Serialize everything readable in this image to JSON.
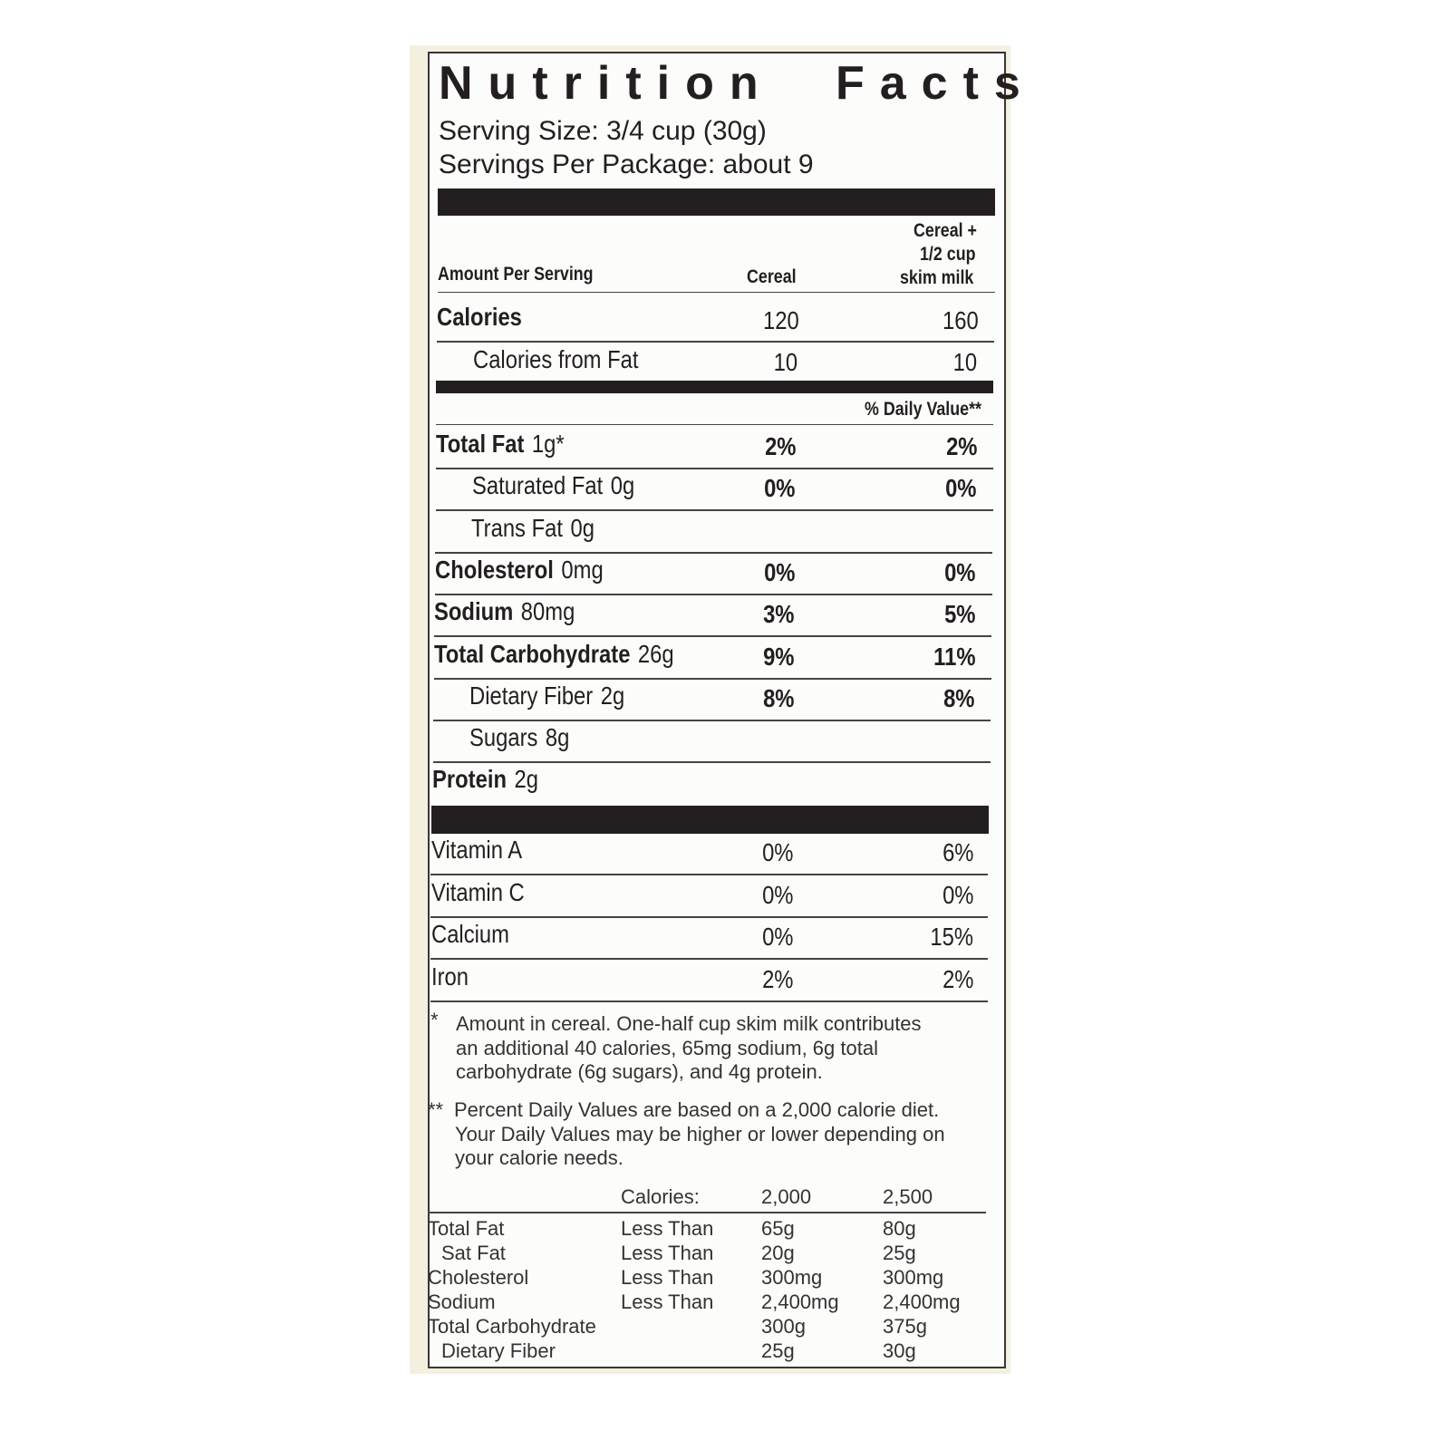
{
  "title_left": "Nutrition",
  "title_right": "Facts",
  "serving_size": "Serving Size: 3/4 cup (30g)",
  "servings_per_package": "Servings Per Package: about 9",
  "header": {
    "amount_per_serving": "Amount Per Serving",
    "col1": "Cereal",
    "col2_lines": [
      "Cereal +",
      "1/2 cup",
      "skim milk"
    ]
  },
  "calories": {
    "label": "Calories",
    "v1": "120",
    "v2": "160"
  },
  "calories_from_fat": {
    "label": "Calories from Fat",
    "v1": "10",
    "v2": "10"
  },
  "daily_value_header": "% Daily Value**",
  "nutrients": [
    {
      "label": "Total Fat",
      "amount": "1g*",
      "v1": "2%",
      "v2": "2%",
      "bold": true,
      "indent": false
    },
    {
      "label": "Saturated Fat",
      "amount": "0g",
      "v1": "0%",
      "v2": "0%",
      "bold": false,
      "indent": true
    },
    {
      "label": "Trans Fat",
      "amount": "0g",
      "v1": "",
      "v2": "",
      "bold": false,
      "indent": true
    },
    {
      "label": "Cholesterol",
      "amount": "0mg",
      "v1": "0%",
      "v2": "0%",
      "bold": true,
      "indent": false
    },
    {
      "label": "Sodium",
      "amount": "80mg",
      "v1": "3%",
      "v2": "5%",
      "bold": true,
      "indent": false
    },
    {
      "label": "Total Carbohydrate",
      "amount": "26g",
      "v1": "9%",
      "v2": "11%",
      "bold": true,
      "indent": false
    },
    {
      "label": "Dietary Fiber",
      "amount": "2g",
      "v1": "8%",
      "v2": "8%",
      "bold": false,
      "indent": true
    },
    {
      "label": "Sugars",
      "amount": "8g",
      "v1": "",
      "v2": "",
      "bold": false,
      "indent": true
    },
    {
      "label": "Protein",
      "amount": "2g",
      "v1": "",
      "v2": "",
      "bold": true,
      "indent": false
    }
  ],
  "vitamins": [
    {
      "label": "Vitamin A",
      "v1": "0%",
      "v2": "6%"
    },
    {
      "label": "Vitamin C",
      "v1": "0%",
      "v2": "0%"
    },
    {
      "label": "Calcium",
      "v1": "0%",
      "v2": "15%"
    },
    {
      "label": "Iron",
      "v1": "2%",
      "v2": "2%"
    }
  ],
  "footnote1": {
    "mark": "*",
    "lines": [
      "Amount in cereal. One-half cup skim milk contributes",
      "an additional 40 calories, 65mg sodium, 6g total",
      "carbohydrate (6g sugars), and 4g protein."
    ]
  },
  "footnote2": {
    "mark": "**",
    "lines": [
      "Percent Daily Values are based on a 2,000 calorie diet.",
      "Your Daily Values may be higher or lower depending on",
      "your calorie needs."
    ]
  },
  "dv_table": {
    "header": [
      "Calories:",
      "2,000",
      "2,500"
    ],
    "rows": [
      [
        "Total Fat",
        "Less Than",
        "65g",
        "80g"
      ],
      [
        "  Sat Fat",
        "Less Than",
        "20g",
        "25g"
      ],
      [
        "Cholesterol",
        "Less Than",
        "300mg",
        "300mg"
      ],
      [
        "Sodium",
        "Less Than",
        "2,400mg",
        "2,400mg"
      ],
      [
        "Total Carbohydrate",
        "",
        "300g",
        "375g"
      ],
      [
        "  Dietary Fiber",
        "",
        "25g",
        "30g"
      ]
    ]
  }
}
